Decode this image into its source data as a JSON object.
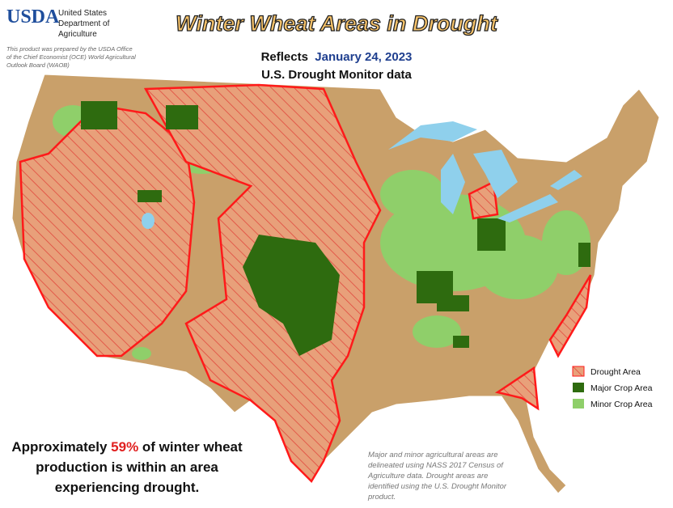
{
  "header": {
    "logo": "USDA",
    "agency": "United States Department of Agriculture",
    "credit": "This product was prepared by the USDA Office of the Chief Economist (OCE) World Agricultural Outlook Board (WAOB)"
  },
  "title": "Winter Wheat Areas in Drought",
  "subtitle": {
    "prefix": "Reflects",
    "date": "January 24, 2023",
    "source": "U.S. Drought Monitor data"
  },
  "legend": [
    "Drought Area",
    "Major Crop Area",
    "Minor Crop Area"
  ],
  "statement": {
    "prefix": "Approximately ",
    "highlight": "59%",
    "suffix": " of winter wheat production is within an area experiencing drought."
  },
  "note": "Major and minor agricultural areas are delineated using NASS 2017 Census of Agriculture data.  Drought areas are identified using the U.S. Drought Monitor product."
}
